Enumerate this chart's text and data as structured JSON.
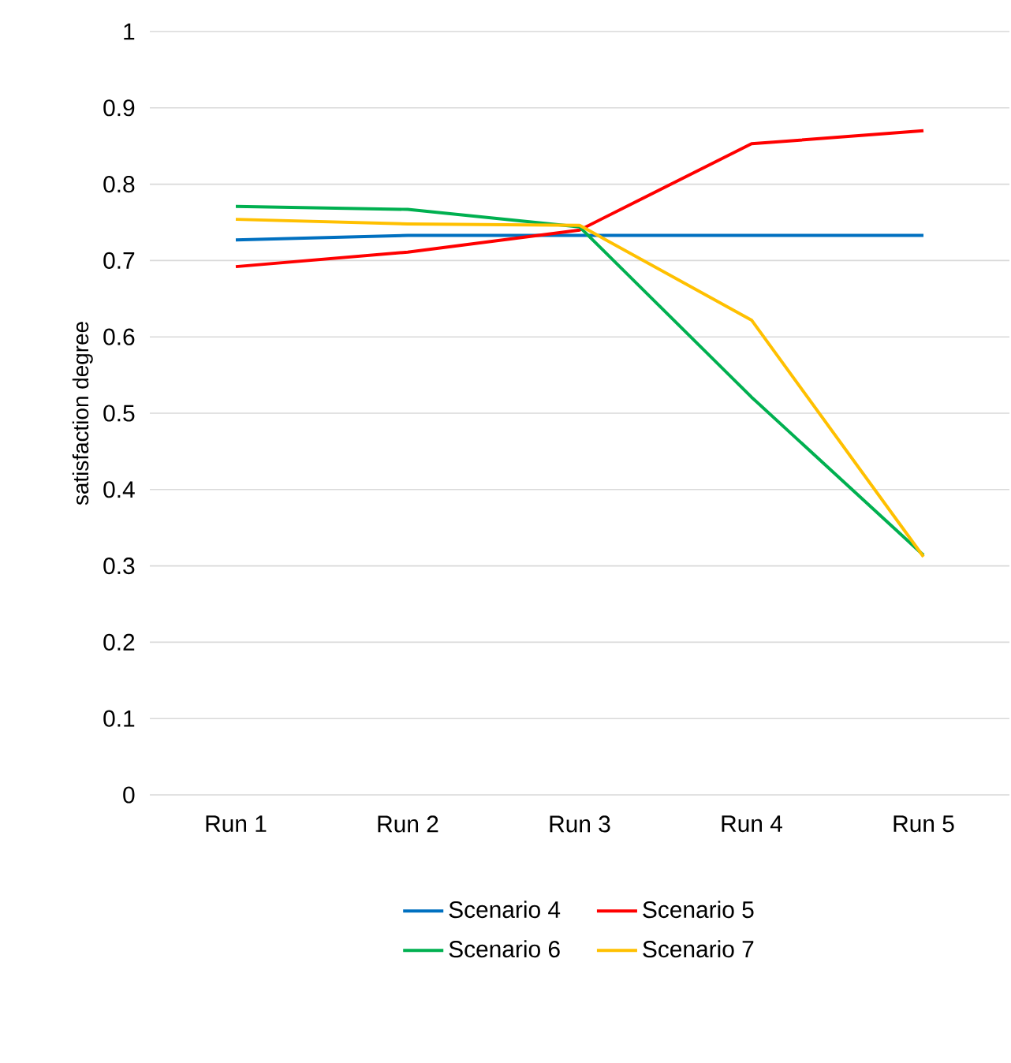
{
  "chart_data": {
    "type": "line",
    "ylabel": "satisfaction degree",
    "categories": [
      "Run 1",
      "Run 2",
      "Run 3",
      "Run 4",
      "Run 5"
    ],
    "series": [
      {
        "name": "Scenario 4",
        "color": "#0070c0",
        "values": [
          0.727,
          0.733,
          0.733,
          0.733,
          0.733
        ]
      },
      {
        "name": "Scenario 5",
        "color": "#ff0000",
        "values": [
          0.692,
          0.711,
          0.74,
          0.853,
          0.87
        ]
      },
      {
        "name": "Scenario 6",
        "color": "#00b050",
        "values": [
          0.771,
          0.767,
          0.744,
          0.521,
          0.314
        ]
      },
      {
        "name": "Scenario 7",
        "color": "#ffc000",
        "values": [
          0.754,
          0.748,
          0.746,
          0.622,
          0.312
        ]
      }
    ],
    "ylim": [
      0,
      1
    ],
    "yticks": [
      0,
      0.1,
      0.2,
      0.3,
      0.4,
      0.5,
      0.6,
      0.7,
      0.8,
      0.9,
      1
    ],
    "grid": "y",
    "legend": "bottom",
    "marker": "none",
    "line_style": "solid"
  }
}
